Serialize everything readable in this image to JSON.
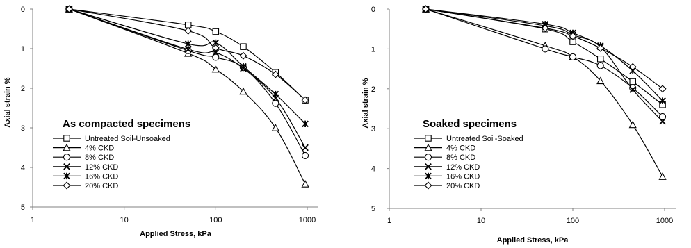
{
  "chart_data": [
    {
      "type": "scatter",
      "title": "As compacted specimens",
      "xlabel": "Applied  Stress,  kPa",
      "ylabel": "Axial strain %",
      "x_scale": "log",
      "xlim": [
        1,
        1000
      ],
      "ylim": [
        0,
        5
      ],
      "y_inverted": true,
      "x_ticks": [
        "1",
        "10",
        "100",
        "1000"
      ],
      "y_ticks": [
        "0",
        "1",
        "2",
        "3",
        "4",
        "5"
      ],
      "grid": false,
      "legend_position": "lower-left",
      "x": [
        2.5,
        50,
        100,
        200,
        450,
        950
      ],
      "series": [
        {
          "name": "Untreated Soil-Unsoaked",
          "marker": "square",
          "values": [
            0,
            0.4,
            0.57,
            0.95,
            1.6,
            2.3
          ]
        },
        {
          "name": "4% CKD",
          "marker": "triangle",
          "values": [
            0,
            1.12,
            1.52,
            2.08,
            3.0,
            4.42
          ]
        },
        {
          "name": "8% CKD",
          "marker": "circle",
          "values": [
            0,
            1.05,
            1.22,
            1.48,
            2.38,
            3.7
          ]
        },
        {
          "name": "12% CKD",
          "marker": "x",
          "values": [
            0,
            1.02,
            1.1,
            1.5,
            2.25,
            3.5
          ]
        },
        {
          "name": "16% CKD",
          "marker": "asterisk",
          "values": [
            0,
            0.88,
            0.85,
            1.45,
            2.15,
            2.9
          ]
        },
        {
          "name": "20% CKD",
          "marker": "diamond",
          "values": [
            0,
            0.55,
            0.98,
            1.18,
            1.65,
            2.3
          ]
        }
      ]
    },
    {
      "type": "scatter",
      "title": "Soaked specimens",
      "xlabel": "Applied Stress, kPa",
      "ylabel": "Axial strain %",
      "x_scale": "log",
      "xlim": [
        1,
        1000
      ],
      "ylim": [
        0,
        5
      ],
      "y_inverted": true,
      "x_ticks": [
        "1",
        "10",
        "100",
        "1000"
      ],
      "y_ticks": [
        "0",
        "1",
        "2",
        "3",
        "4",
        "5"
      ],
      "grid": false,
      "legend_position": "lower-left",
      "x": [
        2.5,
        50,
        100,
        200,
        450,
        950
      ],
      "series": [
        {
          "name": "Untreated Soil-Soaked",
          "marker": "square",
          "values": [
            0,
            0.5,
            0.82,
            1.25,
            1.82,
            2.4
          ]
        },
        {
          "name": "4% CKD",
          "marker": "triangle",
          "values": [
            0,
            0.92,
            1.2,
            1.8,
            2.9,
            4.2
          ]
        },
        {
          "name": "8% CKD",
          "marker": "circle",
          "values": [
            0,
            1.0,
            1.2,
            1.42,
            1.98,
            2.7
          ]
        },
        {
          "name": "12% CKD",
          "marker": "x",
          "values": [
            0,
            0.42,
            0.65,
            0.95,
            2.02,
            2.82
          ]
        },
        {
          "name": "16% CKD",
          "marker": "asterisk",
          "values": [
            0,
            0.38,
            0.6,
            0.92,
            1.55,
            2.3
          ]
        },
        {
          "name": "20% CKD",
          "marker": "diamond",
          "values": [
            0,
            0.48,
            0.68,
            0.98,
            1.45,
            2.0
          ]
        }
      ]
    }
  ]
}
